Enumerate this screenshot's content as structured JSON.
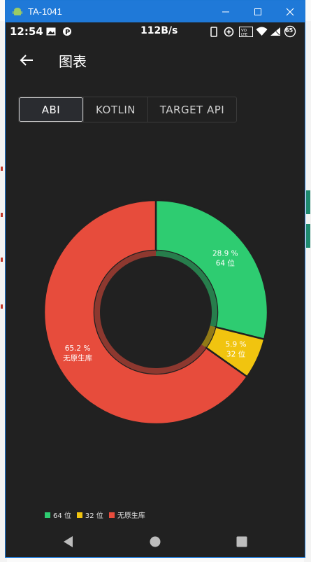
{
  "window": {
    "title": "TA-1041"
  },
  "status_bar": {
    "time": "12:54",
    "net_speed": "112B/s",
    "battery": "65"
  },
  "app_bar": {
    "title": "图表"
  },
  "tabs": [
    {
      "label": "ABI",
      "active": true
    },
    {
      "label": "KOTLIN",
      "active": false
    },
    {
      "label": "TARGET API",
      "active": false
    }
  ],
  "colors": {
    "green": "#2ecc71",
    "yellow": "#f1c40f",
    "red": "#e74c3c",
    "bg": "#212121",
    "accent": "#1f79d8"
  },
  "chart_data": {
    "type": "pie",
    "donut": true,
    "slices": [
      {
        "name": "64 位",
        "value": 28.9,
        "color": "#2ecc71",
        "label_pct": "28.9 %",
        "label_name": "64 位"
      },
      {
        "name": "32 位",
        "value": 5.9,
        "color": "#f1c40f",
        "label_pct": "5.9 %",
        "label_name": "32 位"
      },
      {
        "name": "无原生库",
        "value": 65.2,
        "color": "#e74c3c",
        "label_pct": "65.2 %",
        "label_name": "无原生库"
      }
    ],
    "legend": [
      "64 位",
      "32 位",
      "无原生库"
    ],
    "legend_placement": "bottom-left"
  },
  "nav": {
    "back": "back-triangle",
    "home": "home-circle",
    "recents": "recents-square"
  }
}
